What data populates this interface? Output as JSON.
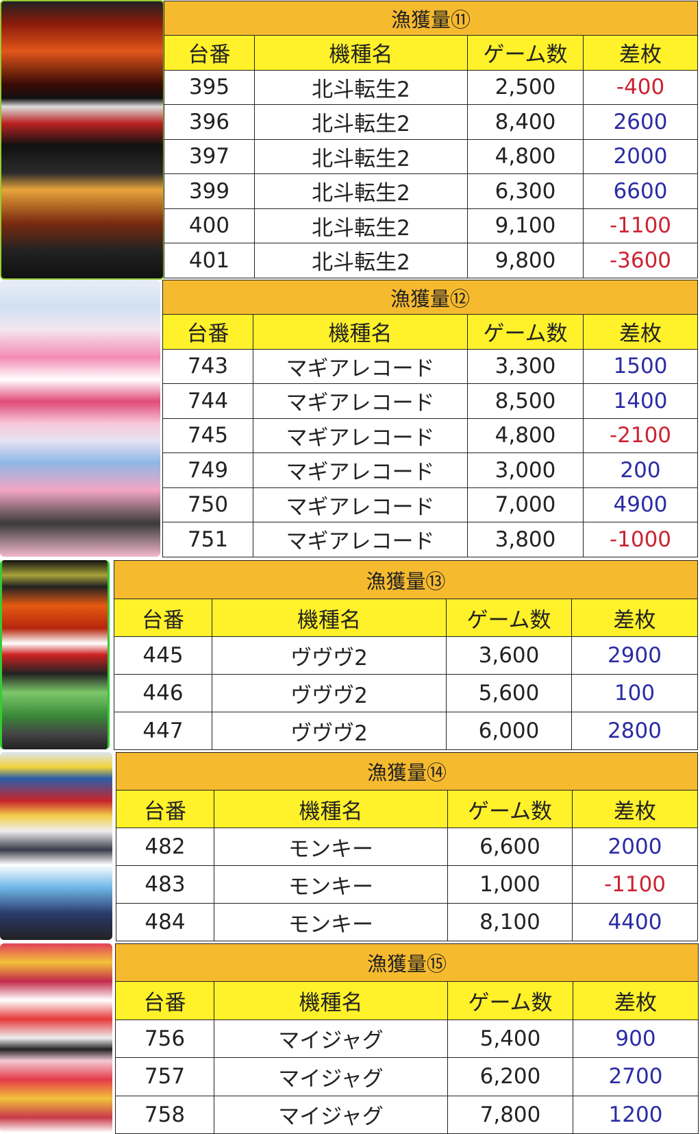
{
  "headers": {
    "no": "台番",
    "model": "機種名",
    "games": "ゲーム数",
    "diff": "差枚"
  },
  "colors": {
    "title_bg": "#F6BA2F",
    "header_bg": "#FFF12A",
    "positive": "#2B2BA5",
    "negative": "#CC2233"
  },
  "sections": [
    {
      "title": "漁獲量⑪",
      "rows": [
        {
          "no": "395",
          "model": "北斗転生2",
          "games": "2,500",
          "diff": "-400"
        },
        {
          "no": "396",
          "model": "北斗転生2",
          "games": "8,400",
          "diff": "2600"
        },
        {
          "no": "397",
          "model": "北斗転生2",
          "games": "4,800",
          "diff": "2000"
        },
        {
          "no": "399",
          "model": "北斗転生2",
          "games": "6,300",
          "diff": "6600"
        },
        {
          "no": "400",
          "model": "北斗転生2",
          "games": "9,100",
          "diff": "-1100"
        },
        {
          "no": "401",
          "model": "北斗転生2",
          "games": "9,800",
          "diff": "-3600"
        }
      ]
    },
    {
      "title": "漁獲量⑫",
      "rows": [
        {
          "no": "743",
          "model": "マギアレコード",
          "games": "3,300",
          "diff": "1500"
        },
        {
          "no": "744",
          "model": "マギアレコード",
          "games": "8,500",
          "diff": "1400"
        },
        {
          "no": "745",
          "model": "マギアレコード",
          "games": "4,800",
          "diff": "-2100"
        },
        {
          "no": "749",
          "model": "マギアレコード",
          "games": "3,000",
          "diff": "200"
        },
        {
          "no": "750",
          "model": "マギアレコード",
          "games": "7,000",
          "diff": "4900"
        },
        {
          "no": "751",
          "model": "マギアレコード",
          "games": "3,800",
          "diff": "-1000"
        }
      ]
    },
    {
      "title": "漁獲量⑬",
      "rows": [
        {
          "no": "445",
          "model": "ヴヴヴ2",
          "games": "3,600",
          "diff": "2900"
        },
        {
          "no": "446",
          "model": "ヴヴヴ2",
          "games": "5,600",
          "diff": "100"
        },
        {
          "no": "447",
          "model": "ヴヴヴ2",
          "games": "6,000",
          "diff": "2800"
        }
      ]
    },
    {
      "title": "漁獲量⑭",
      "rows": [
        {
          "no": "482",
          "model": "モンキー",
          "games": "6,600",
          "diff": "2000"
        },
        {
          "no": "483",
          "model": "モンキー",
          "games": "1,000",
          "diff": "-1100"
        },
        {
          "no": "484",
          "model": "モンキー",
          "games": "8,100",
          "diff": "4400"
        }
      ]
    },
    {
      "title": "漁獲量⑮",
      "rows": [
        {
          "no": "756",
          "model": "マイジャグ",
          "games": "5,400",
          "diff": "900"
        },
        {
          "no": "757",
          "model": "マイジャグ",
          "games": "6,200",
          "diff": "2700"
        },
        {
          "no": "758",
          "model": "マイジャグ",
          "games": "7,800",
          "diff": "1200"
        }
      ]
    }
  ]
}
